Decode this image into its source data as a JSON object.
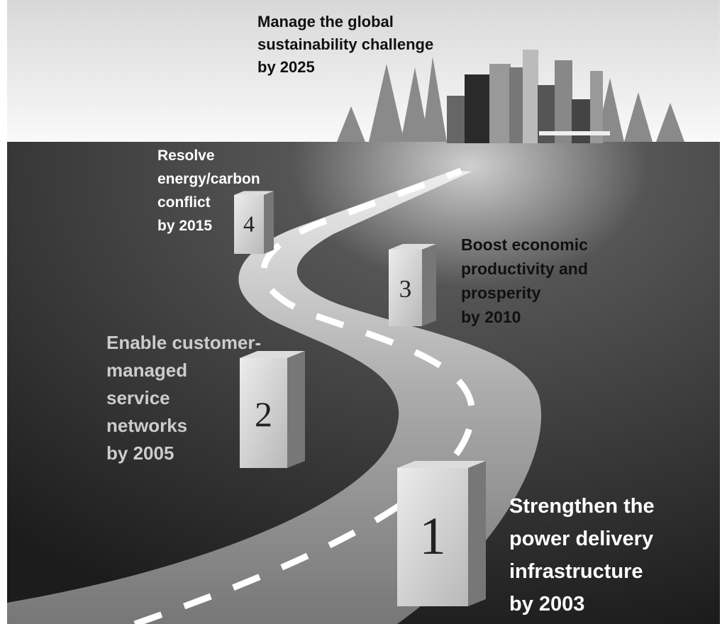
{
  "goal": {
    "lines": [
      "Manage the global",
      "sustainability challenge",
      "by 2025"
    ]
  },
  "milestones": [
    {
      "number": 1,
      "lines": [
        "Strengthen the",
        "power delivery",
        "infrastructure",
        "by 2003"
      ]
    },
    {
      "number": 2,
      "lines": [
        "Enable customer-",
        "managed",
        "service",
        "networks",
        "by 2005"
      ]
    },
    {
      "number": 3,
      "lines": [
        "Boost economic",
        "productivity and",
        "prosperity",
        "by 2010"
      ]
    },
    {
      "number": 4,
      "lines": [
        "Resolve",
        "energy/carbon",
        "conflict",
        "by 2015"
      ]
    }
  ]
}
